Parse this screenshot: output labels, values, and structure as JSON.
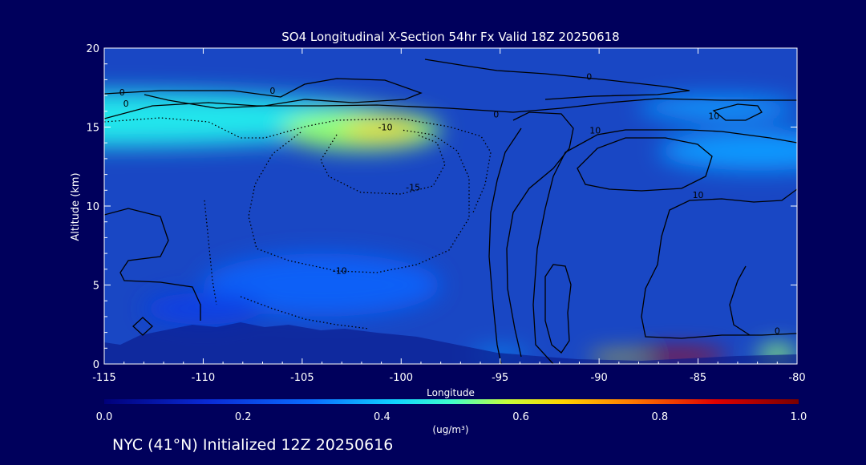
{
  "chart_data": {
    "type": "heatmap",
    "title": "SO4 Longitudinal X-Section 54hr  Fx Valid 18Z 20250618",
    "xlabel": "Longitude",
    "ylabel": "Altitude (km)",
    "x_ticks": [
      "-115",
      "-110",
      "-105",
      "-100",
      "-95",
      "-90",
      "-85",
      "-80"
    ],
    "x_tick_values": [
      -115,
      -110,
      -105,
      -100,
      -95,
      -90,
      -85,
      -80
    ],
    "y_ticks": [
      "0",
      "5",
      "10",
      "15",
      "20"
    ],
    "y_tick_values": [
      0,
      5,
      10,
      15,
      20
    ],
    "xlim": [
      -115,
      -80
    ],
    "ylim": [
      0,
      20
    ],
    "colorbar": {
      "label": "(ug/m³)",
      "min": 0.0,
      "max": 1.0,
      "ticks": [
        "0.0",
        "0.2",
        "0.4",
        "0.6",
        "0.8",
        "1.0"
      ],
      "tick_values": [
        0.0,
        0.2,
        0.4,
        0.6,
        0.8,
        1.0
      ]
    },
    "concentration_field": [
      {
        "lon": -115,
        "alt": 15.5,
        "value": 0.45,
        "dlon": 30,
        "dalt": 3.5
      },
      {
        "lon": -102,
        "alt": 14.8,
        "value": 0.55,
        "dlon": 8,
        "dalt": 2.5
      },
      {
        "lon": -101,
        "alt": 14.8,
        "value": 0.68,
        "dlon": 4,
        "dalt": 0.9
      },
      {
        "lon": -84,
        "alt": 16.2,
        "value": 0.35,
        "dlon": 8,
        "dalt": 1.5
      },
      {
        "lon": -82,
        "alt": 13.5,
        "value": 0.35,
        "dlon": 10,
        "dalt": 2.5
      },
      {
        "lon": -104,
        "alt": 5.0,
        "value": 0.27,
        "dlon": 12,
        "dalt": 4
      },
      {
        "lon": -110,
        "alt": 3.5,
        "value": 0.2,
        "dlon": 6,
        "dalt": 2
      },
      {
        "lon": -86,
        "alt": 0.5,
        "value": 0.93,
        "dlon": 5,
        "dalt": 0.8
      },
      {
        "lon": -89,
        "alt": 0.4,
        "value": 0.65,
        "dlon": 3,
        "dalt": 0.5
      },
      {
        "lon": -81,
        "alt": 0.6,
        "value": 0.55,
        "dlon": 2,
        "dalt": 1.2
      },
      {
        "lon": -95,
        "alt": 0.6,
        "value": 0.35,
        "dlon": 3,
        "dalt": 0.6
      }
    ],
    "contour_labels": [
      {
        "text": "0",
        "lon": -114.1,
        "alt": 17.0
      },
      {
        "text": "0",
        "lon": -113.9,
        "alt": 16.3
      },
      {
        "text": "0",
        "lon": -106.5,
        "alt": 17.1
      },
      {
        "text": "0",
        "lon": -95.2,
        "alt": 15.6
      },
      {
        "text": "0",
        "lon": -90.5,
        "alt": 18.0
      },
      {
        "text": "10",
        "lon": -90.2,
        "alt": 14.6
      },
      {
        "text": "10",
        "lon": -84.2,
        "alt": 15.5
      },
      {
        "text": "-10",
        "lon": -100.8,
        "alt": 14.8
      },
      {
        "text": "-15",
        "lon": -99.4,
        "alt": 11.0
      },
      {
        "text": "-10",
        "lon": -103.1,
        "alt": 5.7
      },
      {
        "text": "10",
        "lon": -85.0,
        "alt": 10.5
      },
      {
        "text": "0",
        "lon": -81.0,
        "alt": 1.9
      }
    ]
  },
  "footer": {
    "label": "NYC (41°N) Initialized 12Z 20250616"
  }
}
